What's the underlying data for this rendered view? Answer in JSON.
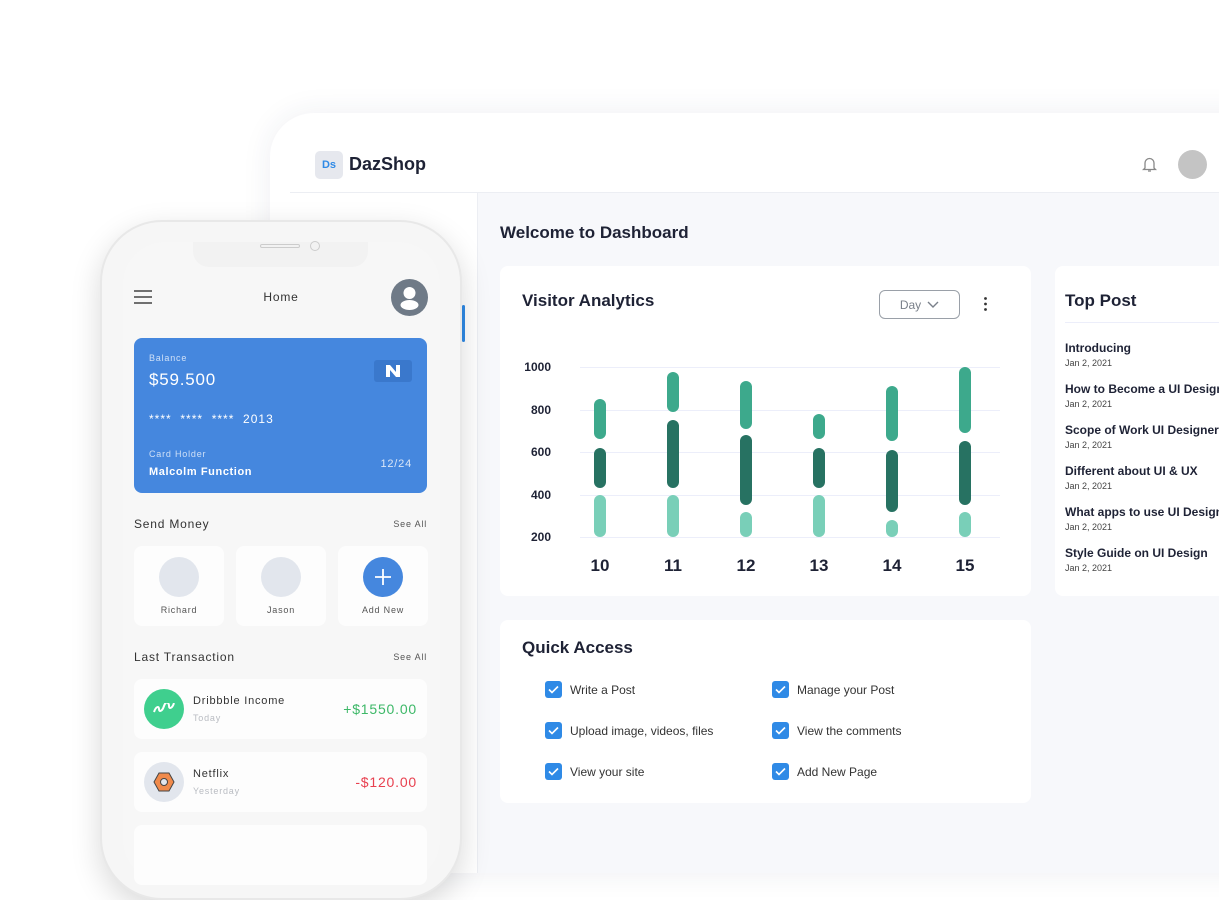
{
  "dashboard": {
    "logo_text": "Ds",
    "brand": "DazShop",
    "bell_icon": "bell-icon",
    "welcome": "Welcome to Dashboard",
    "visitor": {
      "title": "Visitor Analytics",
      "range": "Day"
    },
    "top_post": {
      "title": "Top Post",
      "items": [
        {
          "title": "Introducing",
          "date": "Jan 2, 2021"
        },
        {
          "title": "How to Become a UI Designer",
          "date": "Jan 2, 2021"
        },
        {
          "title": "Scope of Work UI Designer",
          "date": "Jan 2, 2021"
        },
        {
          "title": "Different about UI & UX",
          "date": "Jan 2, 2021"
        },
        {
          "title": "What apps to use UI Designer",
          "date": "Jan 2, 2021"
        },
        {
          "title": "Style Guide on UI Design",
          "date": "Jan 2, 2021"
        }
      ]
    },
    "quick_access": {
      "title": "Quick Access",
      "items": [
        {
          "label": "Write a Post",
          "checked": true
        },
        {
          "label": "Manage your Post",
          "checked": true
        },
        {
          "label": "Upload image, videos, files",
          "checked": true
        },
        {
          "label": "View the comments",
          "checked": true
        },
        {
          "label": "View your site",
          "checked": true
        },
        {
          "label": "Add New Page",
          "checked": true
        }
      ]
    }
  },
  "chart_data": {
    "type": "bar",
    "subtype": "stacked-range-pills",
    "categories": [
      "10",
      "11",
      "12",
      "13",
      "14",
      "15"
    ],
    "yticks": [
      "1000",
      "800",
      "600",
      "400",
      "200"
    ],
    "ylim": [
      200,
      1000
    ],
    "grid": true,
    "colors": {
      "light": "#79cfb8",
      "dark": "#277262",
      "mid": "#3da98c"
    },
    "series": [
      {
        "color": "light",
        "ranges": [
          [
            200,
            400
          ],
          [
            200,
            400
          ],
          [
            200,
            320
          ],
          [
            200,
            400
          ],
          [
            200,
            280
          ],
          [
            200,
            320
          ]
        ]
      },
      {
        "color": "dark",
        "ranges": [
          [
            430,
            620
          ],
          [
            430,
            750
          ],
          [
            350,
            680
          ],
          [
            430,
            620
          ],
          [
            320,
            610
          ],
          [
            350,
            650
          ]
        ]
      },
      {
        "color": "mid",
        "ranges": [
          [
            660,
            850
          ],
          [
            790,
            975
          ],
          [
            710,
            935
          ],
          [
            660,
            780
          ],
          [
            650,
            910
          ],
          [
            690,
            1000
          ]
        ]
      }
    ]
  },
  "phone": {
    "title": "Home",
    "card": {
      "balance_label": "Balance",
      "balance": "$59.500",
      "number": "****  ****  ****  2013",
      "holder_label": "Card Holder",
      "holder": "Malcolm Function",
      "expiry": "12/24",
      "color": "#4587de"
    },
    "send_money": {
      "title": "Send Money",
      "see_all": "See All",
      "contacts": [
        "Richard",
        "Jason"
      ],
      "add_new": "Add New"
    },
    "last_transaction": {
      "title": "Last Transaction",
      "see_all": "See All",
      "items": [
        {
          "name": "Dribbble Income",
          "when": "Today",
          "amount": "+$1550.00",
          "color": "#3db868"
        },
        {
          "name": "Netflix",
          "when": "Yesterday",
          "amount": "-$120.00",
          "color": "#e8404f"
        }
      ]
    }
  }
}
